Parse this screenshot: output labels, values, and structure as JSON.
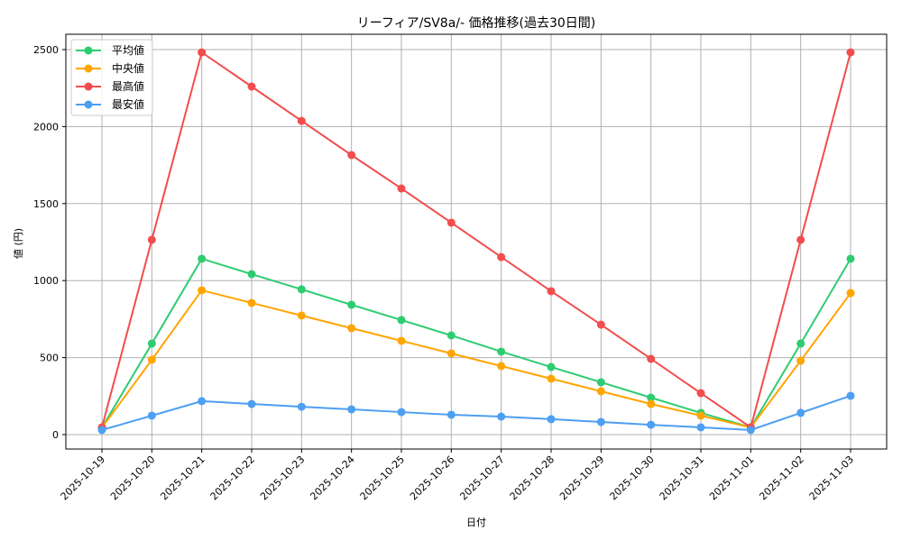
{
  "chart_data": {
    "type": "line",
    "title": "リーフィア/SV8a/- 価格推移(過去30日間)",
    "xlabel": "日付",
    "ylabel": "値 (円)",
    "ylim": [
      -90,
      2600
    ],
    "yticks": [
      0,
      500,
      1000,
      1500,
      2000,
      2500
    ],
    "grid": true,
    "legend_position": "upper left",
    "categories": [
      "2025-10-19",
      "2025-10-20",
      "2025-10-21",
      "2025-10-22",
      "2025-10-23",
      "2025-10-24",
      "2025-10-25",
      "2025-10-26",
      "2025-10-27",
      "2025-10-28",
      "2025-10-29",
      "2025-10-30",
      "2025-10-31",
      "2025-11-01",
      "2025-11-02",
      "2025-11-03"
    ],
    "series": [
      {
        "name": "平均値",
        "color": "#2ecc71",
        "values": [
          45,
          591,
          1142,
          1042,
          943,
          843,
          744,
          644,
          539,
          439,
          340,
          240,
          141,
          47,
          591,
          1142
        ]
      },
      {
        "name": "中央値",
        "color": "#ffa500",
        "values": [
          45,
          486,
          937,
          855,
          773,
          691,
          609,
          527,
          445,
          363,
          281,
          199,
          123,
          47,
          480,
          919
        ]
      },
      {
        "name": "最高値",
        "color": "#f24d4d",
        "values": [
          47,
          1265,
          2482,
          2260,
          2037,
          1815,
          1598,
          1376,
          1153,
          931,
          714,
          492,
          269,
          47,
          1265,
          2482
        ]
      },
      {
        "name": "最安値",
        "color": "#4d9ff2",
        "values": [
          30,
          123,
          217,
          199,
          181,
          164,
          146,
          129,
          117,
          100,
          82,
          64,
          47,
          30,
          141,
          252
        ]
      }
    ]
  }
}
